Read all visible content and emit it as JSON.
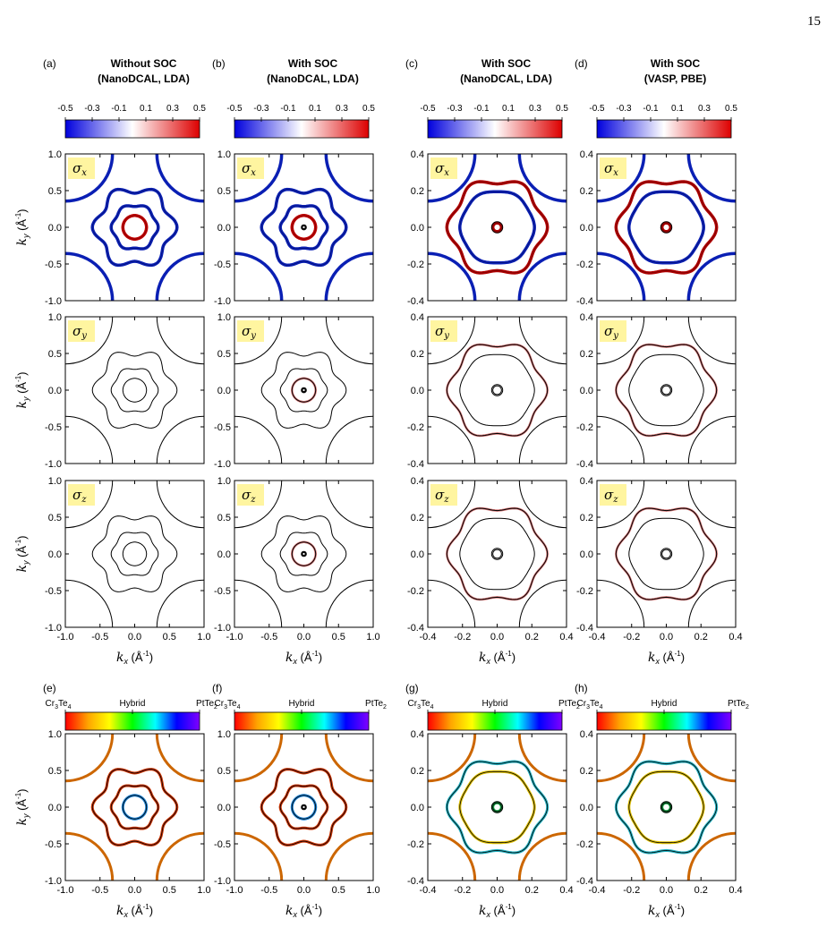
{
  "page_number": "15",
  "columns": [
    {
      "letter": "(a)",
      "title1": "Without SOC",
      "title2": "(NanoDCAL, LDA)"
    },
    {
      "letter": "(b)",
      "title1": "With SOC",
      "title2": "(NanoDCAL, LDA)"
    },
    {
      "letter": "(c)",
      "title1": "With SOC",
      "title2": "(NanoDCAL, LDA)"
    },
    {
      "letter": "(d)",
      "title1": "With SOC",
      "title2": "(VASP, PBE)"
    }
  ],
  "bottom_letters": [
    "(e)",
    "(f)",
    "(g)",
    "(h)"
  ],
  "spin_colorbar": {
    "ticks": [
      "-0.5",
      "-0.3",
      "-0.1",
      "0.1",
      "0.3",
      "0.5"
    ],
    "colors": [
      "#0000dd",
      "#ffffff",
      "#dd0000"
    ]
  },
  "hybrid_colorbar": {
    "left_label": "Cr",
    "left_sub1": "3",
    "left_mid": "Te",
    "left_sub2": "4",
    "mid_label": "Hybrid",
    "right_label": "PtTe",
    "right_sub": "2",
    "colors": [
      "#ff0000",
      "#ffa500",
      "#ffff00",
      "#00ff00",
      "#00ffff",
      "#0000ff",
      "#8000ff"
    ]
  },
  "panel_labels": [
    "σx",
    "σy",
    "σz"
  ],
  "axis_labels": {
    "kx": "k",
    "kx_sub": "x",
    "ky": "k",
    "ky_sub": "y",
    "unit": " (Å",
    "unit_sup": "-1",
    "unit_close": ")"
  },
  "ticks_wide": [
    "-1.0",
    "-0.5",
    "0.0",
    "0.5",
    "1.0"
  ],
  "ticks_narrow": [
    "-0.4",
    "-0.2",
    "0.0",
    "0.2",
    "0.4"
  ],
  "chart_data": {
    "type": "contour",
    "description_axes": {
      "wide_range": [
        -1.0,
        1.0
      ],
      "narrow_range": [
        -0.4,
        0.4
      ]
    },
    "contours_wide": [
      {
        "r": 0.17,
        "amp": 0.0,
        "n": 6,
        "role": "inner"
      },
      {
        "r": 0.32,
        "amp": 0.02,
        "n": 6,
        "role": "mid"
      },
      {
        "r": 0.55,
        "amp": 0.06,
        "n": 6,
        "role": "outer"
      }
    ],
    "contours_narrow": [
      {
        "r": 0.27,
        "amp": 0.02,
        "n": 6,
        "role": "outer"
      },
      {
        "r": 0.21,
        "amp": 0.005,
        "n": 6,
        "role": "mid"
      },
      {
        "r": 0.025,
        "amp": 0.0,
        "n": 6,
        "role": "core"
      }
    ]
  }
}
